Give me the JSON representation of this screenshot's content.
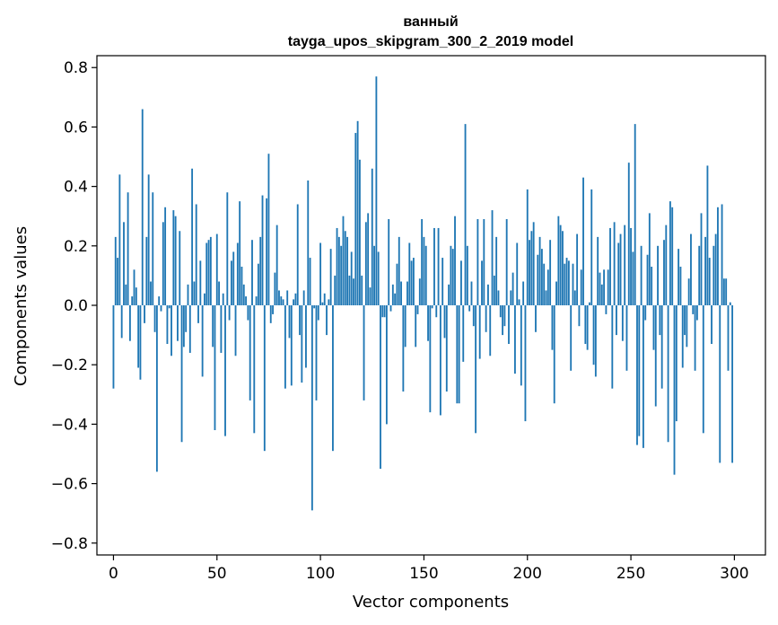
{
  "chart_data": {
    "type": "bar",
    "title": "ванный",
    "subtitle": "tayga_upos_skipgram_300_2_2019 model",
    "xlabel": "Vector components",
    "ylabel": "Components values",
    "xlim": [
      -8,
      315
    ],
    "ylim": [
      -0.84,
      0.84
    ],
    "xticks": [
      0,
      50,
      100,
      150,
      200,
      250,
      300
    ],
    "yticks": [
      -0.8,
      -0.6,
      -0.4,
      -0.2,
      0.0,
      0.2,
      0.4,
      0.6,
      0.8
    ],
    "ytick_labels": [
      "−0.8",
      "−0.6",
      "−0.4",
      "−0.2",
      "0.0",
      "0.2",
      "0.4",
      "0.6",
      "0.8"
    ],
    "grid": false,
    "color": "#1f77b4",
    "values": [
      -0.28,
      0.23,
      0.16,
      0.44,
      -0.11,
      0.28,
      0.07,
      0.38,
      -0.12,
      0.03,
      0.12,
      0.06,
      -0.21,
      -0.25,
      0.66,
      -0.06,
      0.23,
      0.44,
      0.08,
      0.38,
      -0.09,
      -0.56,
      0.03,
      -0.02,
      0.28,
      0.33,
      -0.13,
      -0.01,
      -0.17,
      0.32,
      0.3,
      -0.12,
      0.25,
      -0.46,
      -0.14,
      -0.09,
      0.07,
      -0.16,
      0.46,
      0.08,
      0.34,
      -0.06,
      0.15,
      -0.24,
      0.04,
      0.21,
      0.22,
      0.23,
      -0.14,
      -0.42,
      0.24,
      0.08,
      -0.16,
      0.04,
      -0.44,
      0.38,
      -0.05,
      0.15,
      0.18,
      -0.17,
      0.21,
      0.35,
      0.13,
      0.07,
      0.03,
      -0.05,
      -0.32,
      0.22,
      -0.43,
      0.03,
      0.14,
      0.23,
      0.37,
      -0.49,
      0.36,
      0.51,
      -0.06,
      -0.03,
      0.11,
      0.27,
      0.05,
      0.03,
      0.02,
      -0.28,
      0.05,
      -0.11,
      -0.27,
      0.02,
      0.04,
      0.34,
      -0.1,
      -0.26,
      0.05,
      -0.21,
      0.42,
      0.16,
      -0.69,
      -0.01,
      -0.32,
      -0.05,
      0.21,
      0.01,
      0.04,
      -0.1,
      0.02,
      0.19,
      -0.49,
      0.1,
      0.26,
      0.23,
      0.2,
      0.3,
      0.25,
      0.23,
      0.1,
      0.18,
      0.09,
      0.58,
      0.62,
      0.49,
      0.1,
      -0.32,
      0.28,
      0.31,
      0.06,
      0.46,
      0.2,
      0.77,
      0.18,
      -0.55,
      -0.04,
      -0.04,
      -0.4,
      0.29,
      -0.02,
      0.07,
      0.04,
      0.14,
      0.23,
      0.08,
      -0.29,
      -0.14,
      0.08,
      0.21,
      0.15,
      0.16,
      -0.14,
      -0.03,
      0.09,
      0.29,
      0.23,
      0.2,
      -0.12,
      -0.36,
      -0.01,
      0.26,
      -0.04,
      0.26,
      -0.37,
      0.16,
      -0.11,
      -0.29,
      0.07,
      0.2,
      0.19,
      0.3,
      -0.33,
      -0.33,
      0.15,
      -0.19,
      0.61,
      0.2,
      -0.02,
      0.08,
      -0.07,
      -0.43,
      0.29,
      -0.18,
      0.15,
      0.29,
      -0.09,
      0.07,
      -0.17,
      0.32,
      0.1,
      0.23,
      0.05,
      -0.04,
      -0.1,
      -0.07,
      0.29,
      -0.13,
      0.05,
      0.11,
      -0.23,
      0.21,
      0.02,
      -0.27,
      0.08,
      -0.39,
      0.39,
      0.22,
      0.25,
      0.28,
      -0.09,
      0.17,
      0.23,
      0.19,
      0.14,
      0.05,
      0.12,
      0.22,
      -0.15,
      -0.33,
      0.08,
      0.3,
      0.27,
      0.25,
      0.14,
      0.16,
      0.15,
      -0.22,
      0.14,
      0.05,
      0.24,
      -0.07,
      0.12,
      0.43,
      -0.13,
      -0.15,
      0.01,
      0.39,
      -0.2,
      -0.24,
      0.23,
      0.11,
      0.07,
      0.12,
      -0.03,
      0.12,
      0.26,
      -0.28,
      0.28,
      -0.1,
      0.21,
      0.24,
      -0.12,
      0.27,
      -0.22,
      0.48,
      0.26,
      0.18,
      0.61,
      -0.47,
      -0.44,
      0.2,
      -0.48,
      -0.05,
      0.17,
      0.31,
      0.13,
      -0.15,
      -0.34,
      0.2,
      -0.1,
      -0.28,
      0.22,
      0.27,
      -0.46,
      0.35,
      0.33,
      -0.57,
      -0.39,
      0.19,
      0.13,
      -0.21,
      -0.1,
      -0.14,
      0.09,
      0.24,
      -0.03,
      -0.22,
      -0.05,
      0.2,
      0.31,
      -0.43,
      0.23,
      0.47,
      0.16,
      -0.13,
      0.2,
      0.24,
      0.33,
      -0.53,
      0.34,
      0.09,
      0.09,
      -0.22,
      0.01,
      -0.53
    ]
  }
}
